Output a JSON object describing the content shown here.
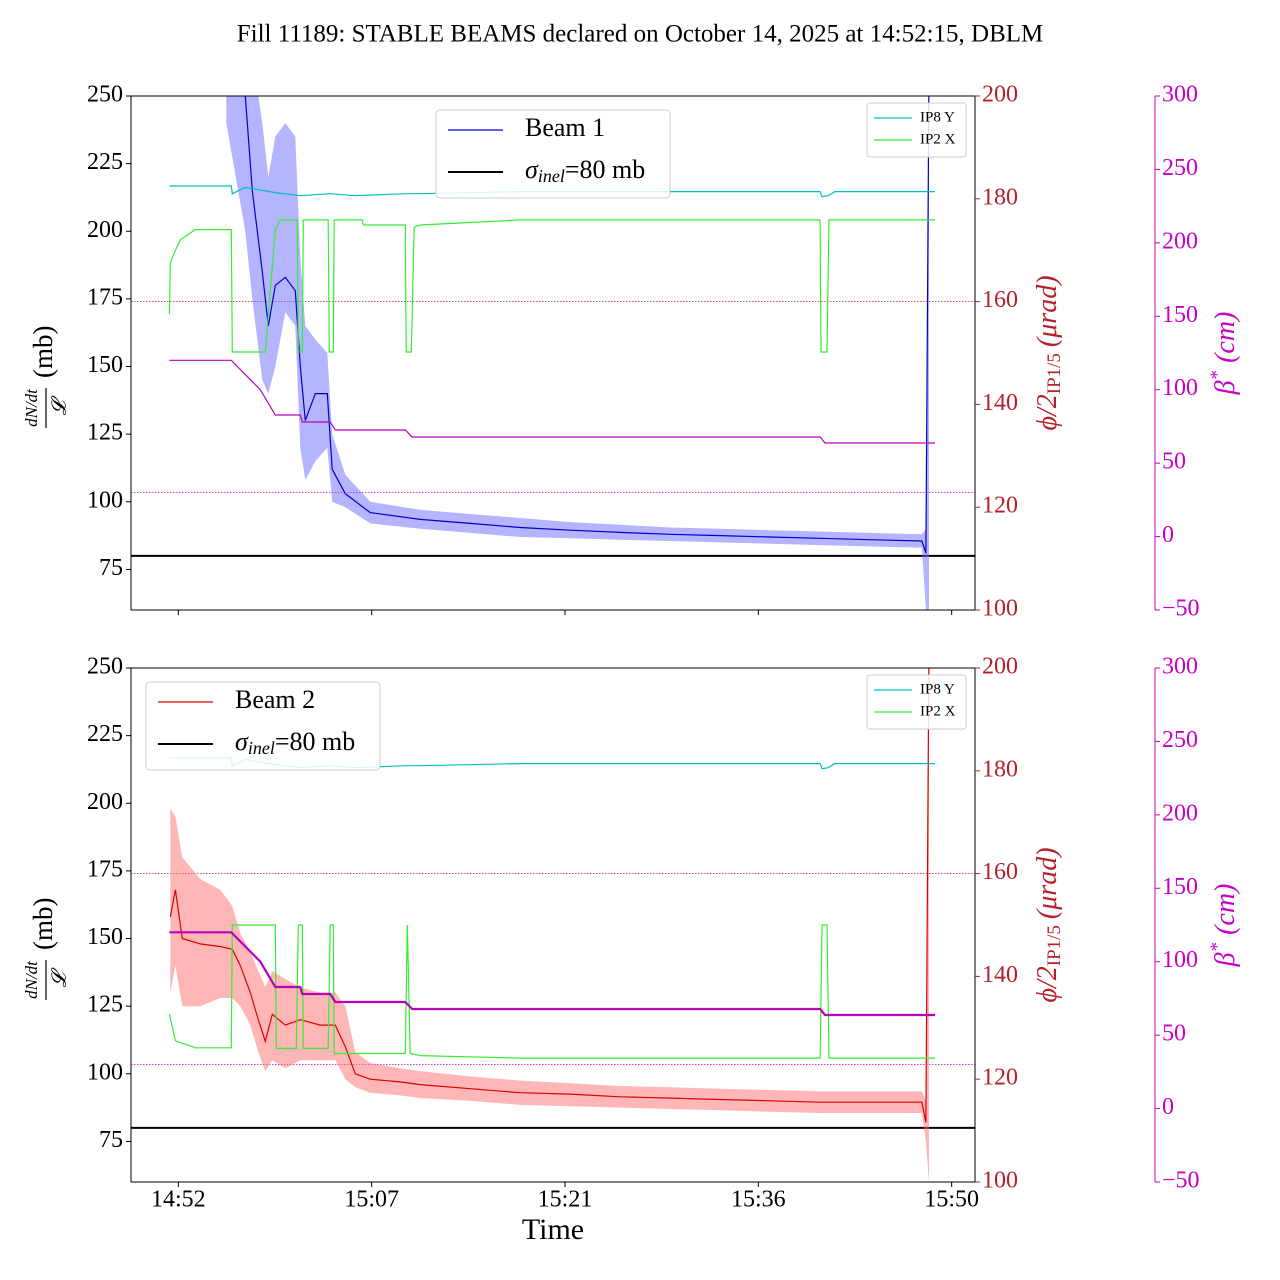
{
  "title": "Fill 11189: STABLE BEAMS declared on October 14, 2025 at 14:52:15, DBLM",
  "xlabel": "Time",
  "chart_data": [
    {
      "type": "line",
      "xlim": [
        888.7,
        952.0
      ],
      "xticks": [
        892.25,
        906.75,
        921.25,
        935.75,
        950.25
      ],
      "show_xtick_labels": false,
      "ylim": [
        60,
        250
      ],
      "yticks": [
        75,
        100,
        125,
        150,
        175,
        200,
        225,
        250
      ],
      "y2lim": [
        100,
        200
      ],
      "y2ticks": [
        100,
        120,
        140,
        160,
        180,
        200
      ],
      "y3lim": [
        -50,
        300
      ],
      "y3ticks": [
        {
          "value": -50,
          "label": "−50"
        },
        0,
        50,
        100,
        150,
        200,
        250,
        300
      ],
      "ylabel": {
        "num": "dN/dt",
        "den": "𝓛",
        "unit": "(mb)"
      },
      "y2label": {
        "main": "ϕ/2",
        "sub": "IP1/5",
        "unit": "(μrad)"
      },
      "y3label": {
        "main": "β",
        "sup": "*",
        "unit": "(cm)"
      },
      "y2color": "#b5202a",
      "y3color": "#c800c8",
      "legend": {
        "main": "upper center",
        "side": "upper right"
      },
      "hlines": [
        {
          "value": 80,
          "axis": "y",
          "color": "#000000",
          "style": "solid",
          "legend": "main",
          "label": [
            "σ",
            "inel",
            "=80 mb"
          ]
        },
        {
          "value": 160,
          "axis": "y2",
          "color": "#b5202a",
          "style": "dotted"
        },
        {
          "value": 30,
          "axis": "y3",
          "color": "#c800c8",
          "style": "dotted"
        }
      ],
      "series": [
        {
          "name": "Beam 1",
          "color": "#0000cc",
          "band_color": "#6a6aff",
          "axis": "y",
          "legend": "main",
          "width": 1.2,
          "x": [
            895.85,
            897.27,
            897.8,
            898.55,
            899.0,
            899.52,
            900.27,
            901.02,
            901.4,
            901.77,
            902.52,
            903.42,
            903.79,
            904.77,
            906.64,
            910.39,
            914.14,
            917.89,
            921.64,
            925.38,
            929.13,
            932.88,
            936.63,
            940.38,
            944.12,
            948.02,
            948.32,
            948.55
          ],
          "values": [
            255,
            250,
            215,
            185,
            165,
            180,
            183,
            178,
            150,
            130,
            140,
            140,
            112,
            103,
            96,
            93.5,
            92,
            90.5,
            89.5,
            88.7,
            88,
            87.5,
            87,
            86.5,
            86,
            85.5,
            81,
            260
          ],
          "upper": [
            270,
            270,
            265,
            240,
            220,
            235,
            240,
            235,
            190,
            165,
            160,
            155,
            125,
            110,
            100,
            97,
            95.5,
            94,
            92.5,
            91.5,
            90.5,
            90,
            89.5,
            89,
            88.5,
            88,
            90,
            260
          ],
          "lower": [
            240,
            200,
            175,
            145,
            140,
            150,
            170,
            165,
            120,
            108,
            115,
            120,
            100,
            98,
            92,
            90,
            88.5,
            87,
            86.5,
            86,
            85.5,
            85,
            84.5,
            84,
            83.5,
            83,
            60,
            60
          ]
        },
        {
          "name": "IP8 Y",
          "color": "#00bfbf",
          "axis": "y2",
          "legend": "side",
          "width": 1.2,
          "x": [
            891.58,
            896.22,
            896.3,
            897.27,
            899.52,
            901.4,
            903.64,
            905.52,
            909.27,
            910.39,
            917.89,
            940.38,
            940.53,
            940.98,
            941.5,
            949.0
          ],
          "values": [
            182.5,
            182.5,
            181,
            182.2,
            181.2,
            180.6,
            181.0,
            180.6,
            181.0,
            181.0,
            181.4,
            181.4,
            180.4,
            180.6,
            181.4,
            181.4
          ]
        },
        {
          "name": "IP2 X",
          "color": "#33ee33",
          "axis": "y2",
          "legend": "side",
          "width": 1.2,
          "x": [
            891.58,
            891.65,
            892.03,
            892.4,
            893.52,
            896.22,
            896.3,
            898.77,
            899.52,
            899.9,
            901.17,
            901.25,
            901.55,
            901.62,
            903.49,
            903.57,
            903.87,
            903.94,
            906.04,
            906.12,
            909.27,
            909.34,
            909.72,
            909.94,
            910.39,
            917.89,
            940.38,
            940.45,
            940.9,
            941.05,
            949.0
          ],
          "values": [
            157.6,
            167.5,
            170,
            172,
            174,
            174,
            150.2,
            150.2,
            174,
            175.9,
            175.9,
            150.2,
            150.2,
            175.9,
            175.9,
            150.2,
            150.2,
            175.9,
            175.9,
            174.9,
            174.9,
            150.2,
            150.2,
            174.5,
            174.9,
            175.9,
            175.9,
            150.2,
            150.2,
            175.9,
            175.9
          ]
        },
        {
          "color": "#bb00bb",
          "axis": "y3",
          "width": 1.2,
          "x": [
            891.58,
            896.22,
            898.4,
            899.52,
            901.4,
            901.55,
            903.64,
            904.02,
            909.27,
            909.79,
            940.38,
            940.75,
            949.0
          ],
          "values": [
            120,
            120,
            100,
            82.8,
            82.8,
            78,
            78,
            72.6,
            72.6,
            67.8,
            67.8,
            63.7,
            63.7
          ]
        }
      ]
    },
    {
      "type": "line",
      "xlim": [
        888.7,
        952.0
      ],
      "xticks": [
        {
          "value": 892.25,
          "label": "14:52"
        },
        {
          "value": 906.75,
          "label": "15:07"
        },
        {
          "value": 921.25,
          "label": "15:21"
        },
        {
          "value": 935.75,
          "label": "15:36"
        },
        {
          "value": 950.25,
          "label": "15:50"
        }
      ],
      "show_xtick_labels": true,
      "ylim": [
        60,
        250
      ],
      "yticks": [
        75,
        100,
        125,
        150,
        175,
        200,
        225,
        250
      ],
      "y2lim": [
        100,
        200
      ],
      "y2ticks": [
        100,
        120,
        140,
        160,
        180,
        200
      ],
      "y3lim": [
        -50,
        300
      ],
      "y3ticks": [
        {
          "value": -50,
          "label": "−50"
        },
        0,
        50,
        100,
        150,
        200,
        250,
        300
      ],
      "ylabel": {
        "num": "dN/dt",
        "den": "𝓛",
        "unit": "(mb)"
      },
      "y2label": {
        "main": "ϕ/2",
        "sub": "IP1/5",
        "unit": "(μrad)"
      },
      "y3label": {
        "main": "β",
        "sup": "*",
        "unit": "(cm)"
      },
      "y2color": "#b5202a",
      "y3color": "#c800c8",
      "legend": {
        "main": "upper left",
        "side": "upper right"
      },
      "hlines": [
        {
          "value": 80,
          "axis": "y",
          "color": "#000000",
          "style": "solid",
          "legend": "main",
          "label": [
            "σ",
            "inel",
            "=80 mb"
          ]
        },
        {
          "value": 160,
          "axis": "y2",
          "color": "#b5202a",
          "style": "dotted"
        },
        {
          "value": 30,
          "axis": "y3",
          "color": "#c800c8",
          "style": "dotted"
        }
      ],
      "series": [
        {
          "name": "Beam 2",
          "color": "#dd0000",
          "band_color": "#ff6e6e",
          "axis": "y",
          "legend": "main",
          "width": 1.2,
          "x": [
            891.65,
            892.03,
            892.55,
            893.9,
            895.4,
            896.3,
            896.9,
            897.65,
            898.25,
            898.77,
            899.3,
            900.27,
            901.4,
            902.9,
            904.02,
            904.77,
            905.52,
            906.64,
            908.89,
            910.39,
            914.14,
            917.89,
            921.64,
            925.38,
            929.13,
            932.88,
            936.63,
            940.38,
            944.12,
            948.02,
            948.32,
            948.55
          ],
          "values": [
            158,
            168,
            150,
            148,
            147,
            146,
            140,
            130,
            120,
            112,
            122,
            118,
            120,
            118,
            118,
            110,
            100,
            98,
            97,
            96,
            94.5,
            93,
            92.5,
            91.5,
            91,
            90.5,
            90,
            89.5,
            89.5,
            89.5,
            82,
            260
          ],
          "upper": [
            198,
            195,
            180,
            172,
            168,
            162,
            152,
            145,
            138,
            132,
            138,
            135,
            132,
            130,
            130,
            125,
            108,
            104,
            102,
            101,
            99,
            97.5,
            96.5,
            95.5,
            95,
            94.5,
            94,
            93.5,
            93.5,
            93.5,
            90,
            260
          ],
          "lower": [
            130,
            140,
            125,
            125,
            128,
            128,
            125,
            118,
            108,
            101,
            105,
            102,
            105,
            105,
            105,
            98,
            95,
            93,
            92,
            91,
            90,
            88.5,
            88,
            87.5,
            87,
            86.5,
            86,
            85.5,
            85.5,
            85.5,
            75,
            60
          ]
        },
        {
          "name": "IP8 Y",
          "color": "#00bfbf",
          "axis": "y2",
          "legend": "side",
          "width": 1.2,
          "x": [
            891.58,
            896.22,
            896.3,
            897.27,
            899.52,
            901.4,
            903.64,
            905.52,
            909.27,
            910.39,
            917.89,
            940.38,
            940.53,
            940.98,
            941.5,
            949.0
          ],
          "values": [
            182.5,
            182.5,
            181,
            182.2,
            181.2,
            180.6,
            181.0,
            180.6,
            181.0,
            181.0,
            181.4,
            181.4,
            180.4,
            180.6,
            181.4,
            181.4
          ]
        },
        {
          "name": "IP2 X",
          "color": "#33ee33",
          "axis": "y2",
          "legend": "side",
          "width": 1.2,
          "x": [
            891.58,
            892.03,
            893.52,
            896.22,
            896.3,
            899.52,
            899.6,
            901.1,
            901.25,
            901.55,
            901.62,
            903.49,
            903.64,
            903.87,
            903.94,
            909.27,
            909.42,
            909.64,
            910.39,
            917.89,
            940.38,
            940.53,
            940.9,
            941.05,
            949.0
          ],
          "values": [
            132.7,
            127.5,
            126.1,
            126.1,
            150,
            150,
            126,
            126,
            150,
            150,
            126,
            126,
            150,
            150,
            125,
            125,
            150,
            125,
            124.6,
            124.1,
            124.1,
            150,
            150,
            124.1,
            124.1
          ]
        },
        {
          "color": "#bb00bb",
          "axis": "y3",
          "width": 2.2,
          "x": [
            891.58,
            896.22,
            898.4,
            899.52,
            901.4,
            901.55,
            903.64,
            904.02,
            909.27,
            909.79,
            940.38,
            940.75,
            949.0
          ],
          "values": [
            120,
            120,
            100,
            82.8,
            82.8,
            78,
            78,
            72.6,
            72.6,
            67.8,
            67.8,
            63.7,
            63.7
          ]
        }
      ]
    }
  ]
}
